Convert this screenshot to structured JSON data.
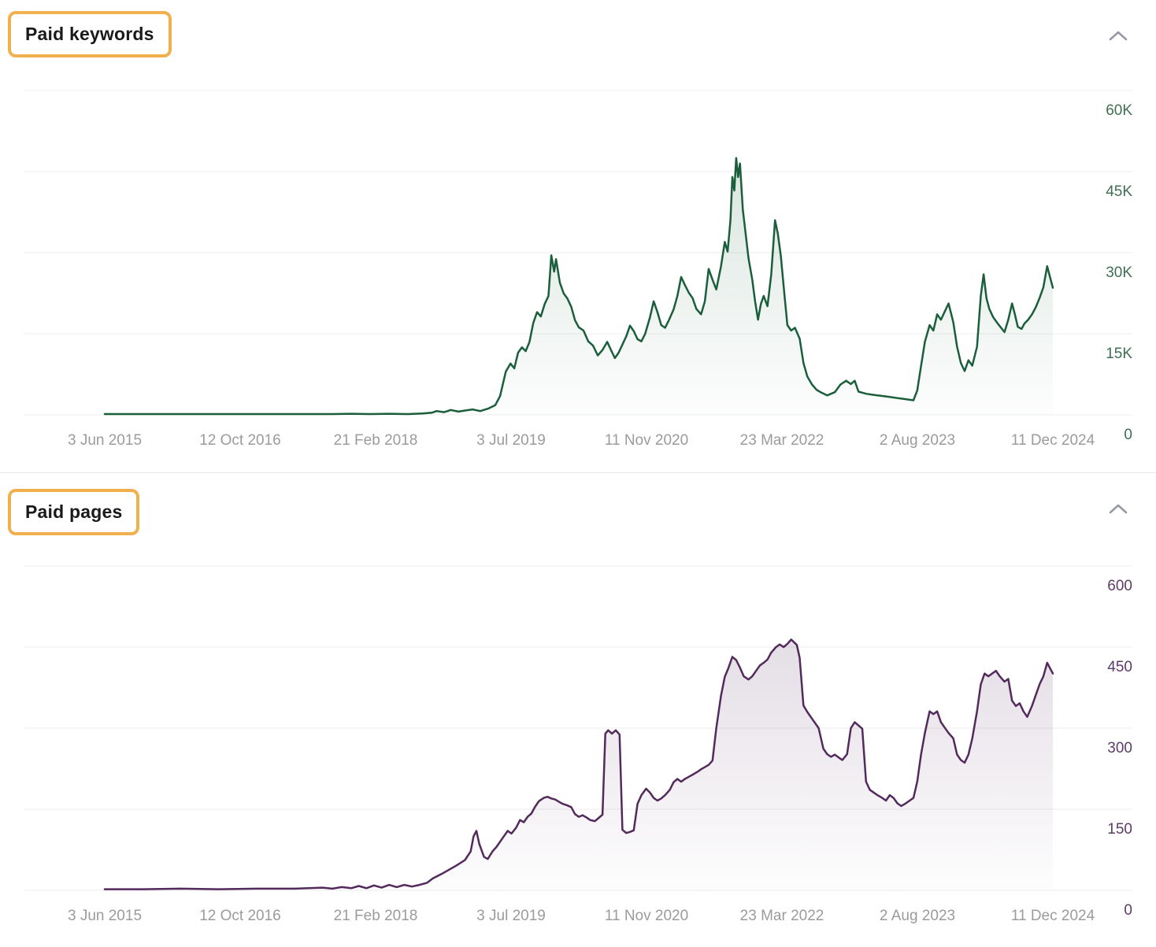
{
  "page": {
    "background": "#ffffff",
    "highlight_box_color": "#f0b04e"
  },
  "panels": [
    {
      "title": "Paid keywords",
      "collapse_icon": "chevron-up"
    },
    {
      "title": "Paid pages",
      "collapse_icon": "chevron-up"
    }
  ],
  "chart_data": [
    {
      "type": "area",
      "title": "Paid keywords",
      "legend": "none",
      "grid": "horizontal",
      "line_color": "#1b5e3b",
      "fill_color": "#1b5e3b",
      "axis_label_color": "#3f6e52",
      "x_tick_label_color": "#9b9b9b",
      "ylim": [
        0,
        60000
      ],
      "y_ticks": [
        {
          "value": 60000,
          "label": "60K"
        },
        {
          "value": 45000,
          "label": "45K"
        },
        {
          "value": 30000,
          "label": "30K"
        },
        {
          "value": 15000,
          "label": "15K"
        },
        {
          "value": 0,
          "label": "0"
        }
      ],
      "x_tick_labels": [
        "3 Jun 2015",
        "12 Oct 2016",
        "21 Feb 2018",
        "3 Jul 2019",
        "11 Nov 2020",
        "23 Mar 2022",
        "2 Aug 2023",
        "11 Dec 2024"
      ],
      "x_unit": "percent of date range 3 Jun 2015 - 11 Dec 2024",
      "points": [
        [
          0,
          150
        ],
        [
          3,
          150
        ],
        [
          6,
          150
        ],
        [
          9,
          150
        ],
        [
          12,
          150
        ],
        [
          15,
          150
        ],
        [
          18,
          150
        ],
        [
          21,
          150
        ],
        [
          24,
          150
        ],
        [
          26,
          200
        ],
        [
          28,
          150
        ],
        [
          30,
          200
        ],
        [
          32,
          150
        ],
        [
          33.5,
          250
        ],
        [
          34.5,
          400
        ],
        [
          35,
          700
        ],
        [
          35.8,
          500
        ],
        [
          36.5,
          900
        ],
        [
          37.3,
          600
        ],
        [
          38,
          800
        ],
        [
          38.8,
          1000
        ],
        [
          39.6,
          700
        ],
        [
          40.5,
          1200
        ],
        [
          41.2,
          1800
        ],
        [
          41.7,
          3500
        ],
        [
          42.3,
          8000
        ],
        [
          42.8,
          9500
        ],
        [
          43.2,
          8600
        ],
        [
          43.6,
          11500
        ],
        [
          44,
          12500
        ],
        [
          44.4,
          11800
        ],
        [
          44.8,
          13500
        ],
        [
          45.2,
          17000
        ],
        [
          45.6,
          19000
        ],
        [
          46,
          18200
        ],
        [
          46.4,
          20500
        ],
        [
          46.8,
          22000
        ],
        [
          47.1,
          29500
        ],
        [
          47.4,
          26500
        ],
        [
          47.6,
          28800
        ],
        [
          48,
          24500
        ],
        [
          48.4,
          22500
        ],
        [
          48.8,
          21500
        ],
        [
          49.2,
          20000
        ],
        [
          49.6,
          17500
        ],
        [
          50,
          16200
        ],
        [
          50.5,
          15600
        ],
        [
          51,
          13600
        ],
        [
          51.5,
          12800
        ],
        [
          52,
          11000
        ],
        [
          52.5,
          12000
        ],
        [
          53,
          13500
        ],
        [
          53.4,
          12000
        ],
        [
          53.8,
          10500
        ],
        [
          54.2,
          11500
        ],
        [
          54.6,
          13000
        ],
        [
          55,
          14500
        ],
        [
          55.4,
          16500
        ],
        [
          55.8,
          15500
        ],
        [
          56.2,
          14000
        ],
        [
          56.6,
          13600
        ],
        [
          57,
          15000
        ],
        [
          57.5,
          18000
        ],
        [
          57.9,
          21000
        ],
        [
          58.3,
          19000
        ],
        [
          58.7,
          16600
        ],
        [
          59.1,
          16100
        ],
        [
          59.5,
          17500
        ],
        [
          60,
          19500
        ],
        [
          60.4,
          22000
        ],
        [
          60.8,
          25500
        ],
        [
          61.2,
          24000
        ],
        [
          61.6,
          22600
        ],
        [
          62,
          21600
        ],
        [
          62.4,
          19600
        ],
        [
          62.9,
          18600
        ],
        [
          63.3,
          21000
        ],
        [
          63.7,
          27000
        ],
        [
          64.1,
          25000
        ],
        [
          64.5,
          23200
        ],
        [
          65,
          27500
        ],
        [
          65.4,
          32000
        ],
        [
          65.7,
          30200
        ],
        [
          66,
          36000
        ],
        [
          66.2,
          44000
        ],
        [
          66.4,
          41500
        ],
        [
          66.6,
          47500
        ],
        [
          66.8,
          44000
        ],
        [
          67,
          46500
        ],
        [
          67.3,
          38000
        ],
        [
          67.6,
          33500
        ],
        [
          67.9,
          29000
        ],
        [
          68.3,
          25000
        ],
        [
          68.6,
          21000
        ],
        [
          68.9,
          17600
        ],
        [
          69.2,
          20500
        ],
        [
          69.5,
          22000
        ],
        [
          69.9,
          20100
        ],
        [
          70.3,
          26000
        ],
        [
          70.7,
          36000
        ],
        [
          71,
          33500
        ],
        [
          71.3,
          29500
        ],
        [
          71.7,
          22000
        ],
        [
          72,
          16600
        ],
        [
          72.4,
          15600
        ],
        [
          72.8,
          16100
        ],
        [
          73.3,
          14100
        ],
        [
          73.7,
          9600
        ],
        [
          74.1,
          7100
        ],
        [
          74.6,
          5600
        ],
        [
          75.1,
          4600
        ],
        [
          75.6,
          4100
        ],
        [
          76.2,
          3600
        ],
        [
          77,
          4200
        ],
        [
          77.6,
          5600
        ],
        [
          78.2,
          6300
        ],
        [
          78.7,
          5700
        ],
        [
          79.1,
          6300
        ],
        [
          79.5,
          4300
        ],
        [
          80.3,
          3900
        ],
        [
          81.1,
          3700
        ],
        [
          82,
          3500
        ],
        [
          82.8,
          3300
        ],
        [
          83.6,
          3100
        ],
        [
          84.5,
          2900
        ],
        [
          85.3,
          2700
        ],
        [
          85.7,
          4500
        ],
        [
          86.1,
          9000
        ],
        [
          86.5,
          13500
        ],
        [
          87,
          16600
        ],
        [
          87.4,
          15600
        ],
        [
          87.8,
          18600
        ],
        [
          88.2,
          17600
        ],
        [
          88.6,
          19100
        ],
        [
          89,
          20600
        ],
        [
          89.5,
          17100
        ],
        [
          89.9,
          12600
        ],
        [
          90.3,
          9600
        ],
        [
          90.7,
          8100
        ],
        [
          91.1,
          10100
        ],
        [
          91.5,
          9100
        ],
        [
          92,
          12600
        ],
        [
          92.4,
          22000
        ],
        [
          92.7,
          26000
        ],
        [
          93,
          21600
        ],
        [
          93.3,
          19600
        ],
        [
          93.7,
          18100
        ],
        [
          94.1,
          17100
        ],
        [
          94.5,
          16200
        ],
        [
          94.9,
          15300
        ],
        [
          95.3,
          17600
        ],
        [
          95.7,
          20600
        ],
        [
          96,
          18600
        ],
        [
          96.3,
          16300
        ],
        [
          96.7,
          15900
        ],
        [
          97,
          16900
        ],
        [
          97.4,
          17600
        ],
        [
          97.8,
          18600
        ],
        [
          98.2,
          19900
        ],
        [
          98.6,
          21600
        ],
        [
          99,
          23600
        ],
        [
          99.4,
          27500
        ],
        [
          100,
          23500
        ]
      ]
    },
    {
      "type": "area",
      "title": "Paid pages",
      "legend": "none",
      "grid": "horizontal",
      "line_color": "#532a5c",
      "fill_color": "#532a5c",
      "axis_label_color": "#5e3a66",
      "x_tick_label_color": "#9b9b9b",
      "ylim": [
        0,
        600
      ],
      "y_ticks": [
        {
          "value": 600,
          "label": "600"
        },
        {
          "value": 450,
          "label": "450"
        },
        {
          "value": 300,
          "label": "300"
        },
        {
          "value": 150,
          "label": "150"
        },
        {
          "value": 0,
          "label": "0"
        }
      ],
      "x_tick_labels": [
        "3 Jun 2015",
        "12 Oct 2016",
        "21 Feb 2018",
        "3 Jul 2019",
        "11 Nov 2020",
        "23 Mar 2022",
        "2 Aug 2023",
        "11 Dec 2024"
      ],
      "x_unit": "percent of date range 3 Jun 2015 - 11 Dec 2024",
      "points": [
        [
          0,
          2
        ],
        [
          4,
          2
        ],
        [
          8,
          3
        ],
        [
          12,
          2
        ],
        [
          16,
          3
        ],
        [
          20,
          3
        ],
        [
          23,
          5
        ],
        [
          24,
          3
        ],
        [
          25,
          6
        ],
        [
          26,
          4
        ],
        [
          26.8,
          8
        ],
        [
          27.6,
          4
        ],
        [
          28.4,
          9
        ],
        [
          29.2,
          5
        ],
        [
          30,
          10
        ],
        [
          30.8,
          6
        ],
        [
          31.6,
          10
        ],
        [
          32.4,
          7
        ],
        [
          33.2,
          10
        ],
        [
          34,
          14
        ],
        [
          34.6,
          22
        ],
        [
          35.5,
          30
        ],
        [
          36.3,
          38
        ],
        [
          37.1,
          46
        ],
        [
          38,
          56
        ],
        [
          38.6,
          72
        ],
        [
          38.9,
          100
        ],
        [
          39.2,
          110
        ],
        [
          39.5,
          86
        ],
        [
          40,
          62
        ],
        [
          40.4,
          58
        ],
        [
          40.9,
          72
        ],
        [
          41.3,
          80
        ],
        [
          41.7,
          90
        ],
        [
          42.1,
          100
        ],
        [
          42.5,
          110
        ],
        [
          42.9,
          105
        ],
        [
          43.4,
          116
        ],
        [
          43.8,
          130
        ],
        [
          44.2,
          126
        ],
        [
          44.6,
          136
        ],
        [
          45,
          142
        ],
        [
          45.4,
          155
        ],
        [
          45.8,
          165
        ],
        [
          46.3,
          171
        ],
        [
          46.7,
          173
        ],
        [
          47.1,
          170
        ],
        [
          47.5,
          168
        ],
        [
          47.9,
          164
        ],
        [
          48.3,
          160
        ],
        [
          48.8,
          157
        ],
        [
          49.2,
          154
        ],
        [
          49.6,
          141
        ],
        [
          50,
          136
        ],
        [
          50.4,
          139
        ],
        [
          50.8,
          135
        ],
        [
          51.2,
          130
        ],
        [
          51.7,
          128
        ],
        [
          52.1,
          134
        ],
        [
          52.5,
          140
        ],
        [
          52.8,
          290
        ],
        [
          53.1,
          296
        ],
        [
          53.5,
          290
        ],
        [
          53.9,
          296
        ],
        [
          54.3,
          288
        ],
        [
          54.6,
          112
        ],
        [
          55,
          106
        ],
        [
          55.4,
          108
        ],
        [
          55.8,
          111
        ],
        [
          56.2,
          160
        ],
        [
          56.6,
          176
        ],
        [
          57.1,
          188
        ],
        [
          57.5,
          181
        ],
        [
          57.9,
          171
        ],
        [
          58.3,
          166
        ],
        [
          58.7,
          170
        ],
        [
          59.1,
          176
        ],
        [
          59.6,
          186
        ],
        [
          60,
          200
        ],
        [
          60.4,
          206
        ],
        [
          60.8,
          201
        ],
        [
          61.2,
          206
        ],
        [
          61.6,
          210
        ],
        [
          62,
          214
        ],
        [
          62.5,
          219
        ],
        [
          62.9,
          224
        ],
        [
          63.3,
          228
        ],
        [
          63.7,
          232
        ],
        [
          64.1,
          240
        ],
        [
          64.5,
          300
        ],
        [
          65,
          360
        ],
        [
          65.4,
          395
        ],
        [
          65.8,
          412
        ],
        [
          66.2,
          432
        ],
        [
          66.6,
          426
        ],
        [
          67,
          412
        ],
        [
          67.4,
          396
        ],
        [
          67.9,
          390
        ],
        [
          68.3,
          396
        ],
        [
          68.7,
          406
        ],
        [
          69.1,
          416
        ],
        [
          69.5,
          421
        ],
        [
          69.9,
          427
        ],
        [
          70.3,
          440
        ],
        [
          70.8,
          450
        ],
        [
          71.2,
          455
        ],
        [
          71.6,
          450
        ],
        [
          72,
          456
        ],
        [
          72.4,
          464
        ],
        [
          72.7,
          459
        ],
        [
          73,
          454
        ],
        [
          73.3,
          430
        ],
        [
          73.7,
          342
        ],
        [
          74.1,
          330
        ],
        [
          74.5,
          320
        ],
        [
          74.9,
          310
        ],
        [
          75.3,
          300
        ],
        [
          75.8,
          262
        ],
        [
          76.2,
          252
        ],
        [
          76.6,
          247
        ],
        [
          77,
          251
        ],
        [
          77.4,
          246
        ],
        [
          77.8,
          241
        ],
        [
          78.3,
          252
        ],
        [
          78.7,
          300
        ],
        [
          79.1,
          311
        ],
        [
          79.5,
          305
        ],
        [
          79.9,
          299
        ],
        [
          80.3,
          201
        ],
        [
          80.7,
          186
        ],
        [
          81.1,
          181
        ],
        [
          81.5,
          176
        ],
        [
          82,
          171
        ],
        [
          82.4,
          166
        ],
        [
          82.8,
          176
        ],
        [
          83.2,
          171
        ],
        [
          83.6,
          161
        ],
        [
          84,
          156
        ],
        [
          84.5,
          161
        ],
        [
          84.9,
          166
        ],
        [
          85.3,
          171
        ],
        [
          85.7,
          201
        ],
        [
          86.1,
          251
        ],
        [
          86.5,
          291
        ],
        [
          87,
          331
        ],
        [
          87.4,
          326
        ],
        [
          87.8,
          331
        ],
        [
          88.2,
          311
        ],
        [
          88.6,
          301
        ],
        [
          89,
          291
        ],
        [
          89.5,
          281
        ],
        [
          89.9,
          251
        ],
        [
          90.3,
          241
        ],
        [
          90.7,
          236
        ],
        [
          91.1,
          251
        ],
        [
          91.5,
          281
        ],
        [
          92,
          331
        ],
        [
          92.4,
          381
        ],
        [
          92.8,
          401
        ],
        [
          93.2,
          396
        ],
        [
          93.6,
          401
        ],
        [
          94,
          406
        ],
        [
          94.4,
          396
        ],
        [
          94.9,
          386
        ],
        [
          95.3,
          391
        ],
        [
          95.7,
          351
        ],
        [
          96.1,
          341
        ],
        [
          96.5,
          346
        ],
        [
          96.9,
          331
        ],
        [
          97.3,
          321
        ],
        [
          97.8,
          341
        ],
        [
          98.2,
          361
        ],
        [
          98.6,
          381
        ],
        [
          99,
          396
        ],
        [
          99.4,
          421
        ],
        [
          100,
          401
        ]
      ]
    }
  ]
}
